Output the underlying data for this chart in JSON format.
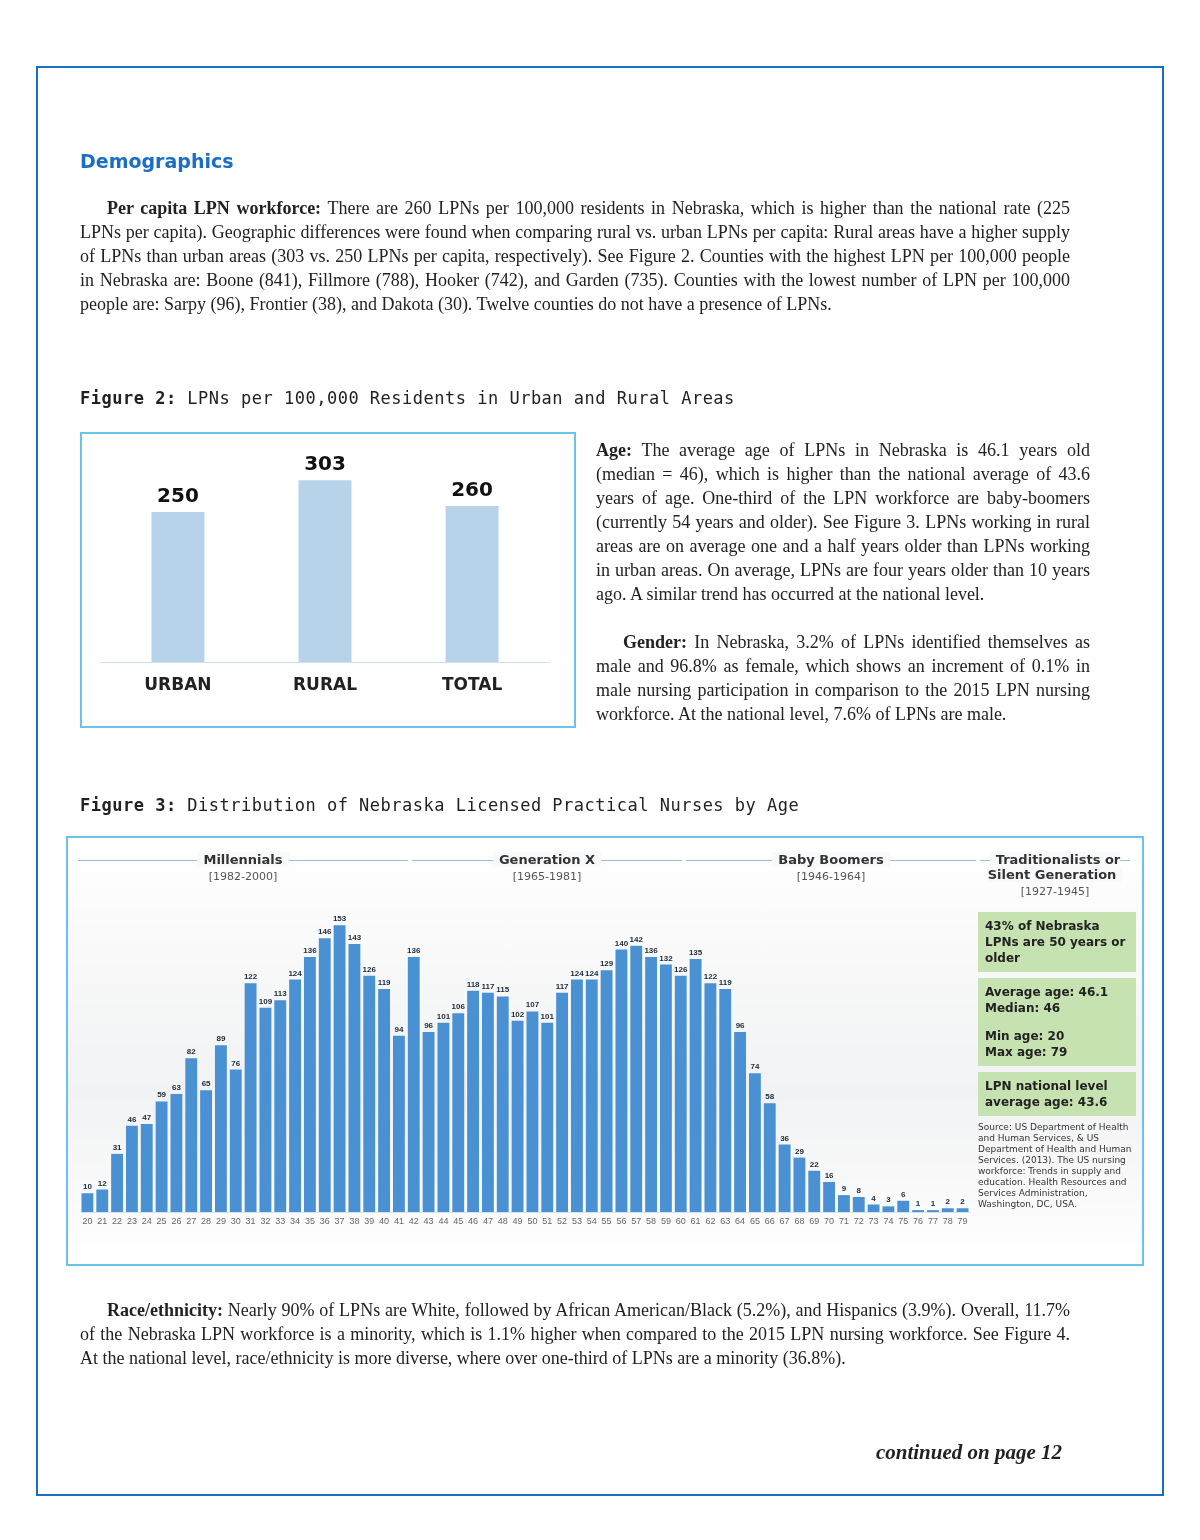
{
  "chart_data": [
    {
      "type": "bar",
      "title": "Figure 2: LPNs per 100,000 Residents in Urban and Rural Areas",
      "categories": [
        "URBAN",
        "RURAL",
        "TOTAL"
      ],
      "values": [
        250,
        303,
        260
      ],
      "color": "#b7d3ea",
      "data_labels": true,
      "annotations": [
        "Demographics",
        "Per capita LPN workforce: There are 260 LPNs per 100,000 residents in Nebraska, which is higher than the national rate (225 LPNs per capita). Geographic differences were found when comparing rural vs. urban LPNs per capita: Rural areas have a higher supply of LPNs than urban areas (303 vs. 250 LPNs per capita, respectively). See Figure 2. Counties with the highest LPN per 100,000 people in Nebraska are: Boone (841), Fillmore (788), Hooker (742), and Garden (735). Counties with the lowest number of LPN per 100,000 people are: Sarpy (96), Frontier (38), and Dakota (30). Twelve counties do not have a presence of LPNs.",
        "Age: The average age of LPNs in Nebraska is 46.1 years old (median = 46), which is higher than the national average of 43.6 years of age. One-third of the LPN workforce are baby-boomers (currently 54 years and older). See Figure 3. LPNs working in rural areas are on average one and a half years older than LPNs working in urban areas. On average, LPNs are four years older than 10 years ago. A similar trend has occurred at the national level.",
        "Gender: In Nebraska, 3.2% of LPNs identified themselves as male and 96.8% as female, which shows an increment of 0.1% in male nursing participation in comparison to the 2015 LPN nursing workforce. At the national level, 7.6% of LPNs are male."
      ]
    },
    {
      "type": "bar",
      "title": "Figure 3: Distribution of Nebraska Licensed Practical Nurses by Age",
      "categories": [
        "20",
        "21",
        "22",
        "23",
        "24",
        "25",
        "26",
        "27",
        "28",
        "29",
        "30",
        "31",
        "32",
        "33",
        "34",
        "35",
        "36",
        "37",
        "38",
        "39",
        "40",
        "41",
        "42",
        "43",
        "44",
        "45",
        "46",
        "47",
        "48",
        "49",
        "50",
        "51",
        "52",
        "53",
        "54",
        "55",
        "56",
        "57",
        "58",
        "59",
        "60",
        "61",
        "62",
        "63",
        "64",
        "65",
        "66",
        "67",
        "68",
        "69",
        "70",
        "71",
        "72",
        "73",
        "74",
        "75",
        "76",
        "77",
        "78",
        "79"
      ],
      "values": [
        10,
        12,
        31,
        46,
        47,
        59,
        63,
        82,
        65,
        89,
        76,
        122,
        109,
        113,
        124,
        136,
        146,
        153,
        143,
        126,
        119,
        94,
        136,
        96,
        101,
        106,
        118,
        117,
        115,
        102,
        107,
        101,
        117,
        124,
        124,
        129,
        140,
        142,
        136,
        132,
        126,
        135,
        122,
        119,
        96,
        74,
        58,
        36,
        29,
        22,
        16,
        9,
        8,
        4,
        3,
        6,
        1,
        1,
        2,
        2
      ],
      "color": "#4a91d4",
      "data_labels": true,
      "annotations": [
        "Millennials",
        "[1982-2000]",
        "Generation X",
        "[1965-1981]",
        "Baby Boomers",
        "[1946-1964]",
        "Traditionalists or Silent Generation",
        "[1927-1945]",
        "43% of Nebraska LPNs are 50 years or older",
        "Average age: 46.1",
        "Median: 46",
        "Min age: 20",
        "Max age: 79",
        "LPN national level average age: 43.6",
        "Source: US Department of Health and Human Services, & US Department of Health and Human Services. (2013). The US nursing workforce: Trends in supply and education. Health Resources and Services Administration, Washington, DC, USA.",
        "Race/ethnicity: Nearly 90% of LPNs are White, followed by African American/Black (5.2%), and Hispanics (3.9%). Overall, 11.7% of the Nebraska LPN workforce is a minority, which is 1.1% higher when compared to the 2015 LPN nursing workforce. See Figure 4. At the national level, race/ethnicity is more diverse, where over one-third of LPNs are a minority (36.8%).",
        "continued on page 12"
      ]
    }
  ]
}
